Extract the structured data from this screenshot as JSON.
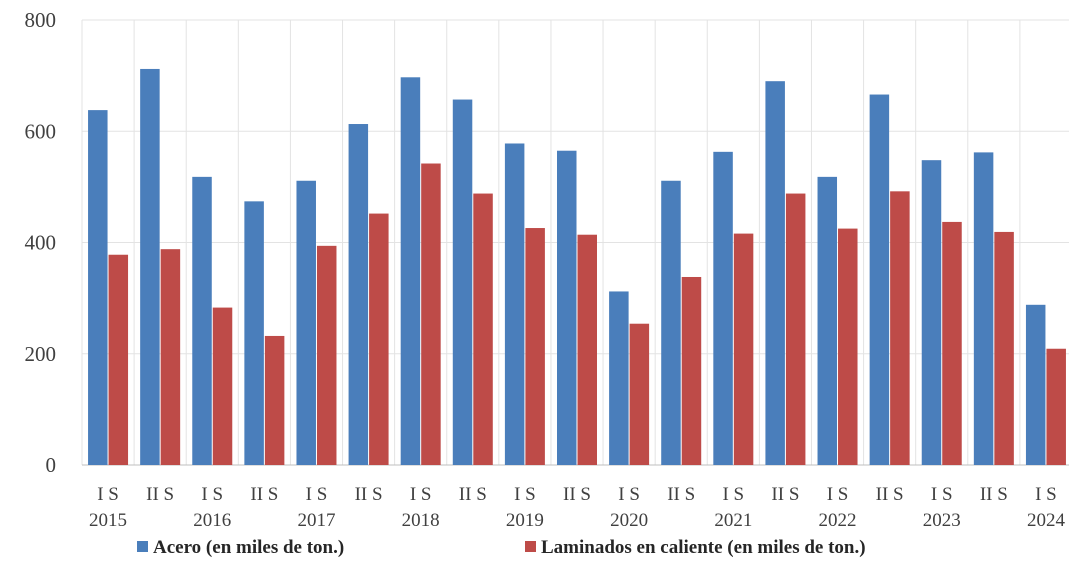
{
  "chart_data": {
    "type": "bar",
    "title": "",
    "xlabel": "",
    "ylabel": "",
    "ylim": [
      0,
      800
    ],
    "yticks": [
      0,
      200,
      400,
      600,
      800
    ],
    "grid": true,
    "legend_position": "bottom",
    "categories": [
      {
        "half": "I S",
        "year": "2015"
      },
      {
        "half": "II S",
        "year": ""
      },
      {
        "half": "I S",
        "year": "2016"
      },
      {
        "half": "II S",
        "year": ""
      },
      {
        "half": "I S",
        "year": "2017"
      },
      {
        "half": "II S",
        "year": ""
      },
      {
        "half": "I S",
        "year": "2018"
      },
      {
        "half": "II S",
        "year": ""
      },
      {
        "half": "I S",
        "year": "2019"
      },
      {
        "half": "II S",
        "year": ""
      },
      {
        "half": "I S",
        "year": "2020"
      },
      {
        "half": "II S",
        "year": ""
      },
      {
        "half": "I S",
        "year": "2021"
      },
      {
        "half": "II S",
        "year": ""
      },
      {
        "half": "I S",
        "year": "2022"
      },
      {
        "half": "II S",
        "year": ""
      },
      {
        "half": "I S",
        "year": "2023"
      },
      {
        "half": "II S",
        "year": ""
      },
      {
        "half": "I S",
        "year": "2024"
      }
    ],
    "series": [
      {
        "name": "Acero (en miles de ton.)",
        "color": "#4a7ebb",
        "values": [
          638,
          712,
          518,
          474,
          511,
          613,
          697,
          657,
          578,
          565,
          312,
          511,
          563,
          690,
          518,
          666,
          548,
          562,
          288
        ]
      },
      {
        "name": "Laminados en caliente (en miles de ton.)",
        "color": "#be4b48",
        "values": [
          378,
          388,
          283,
          232,
          394,
          452,
          542,
          488,
          426,
          414,
          254,
          338,
          416,
          488,
          425,
          492,
          437,
          419,
          209
        ]
      }
    ]
  }
}
